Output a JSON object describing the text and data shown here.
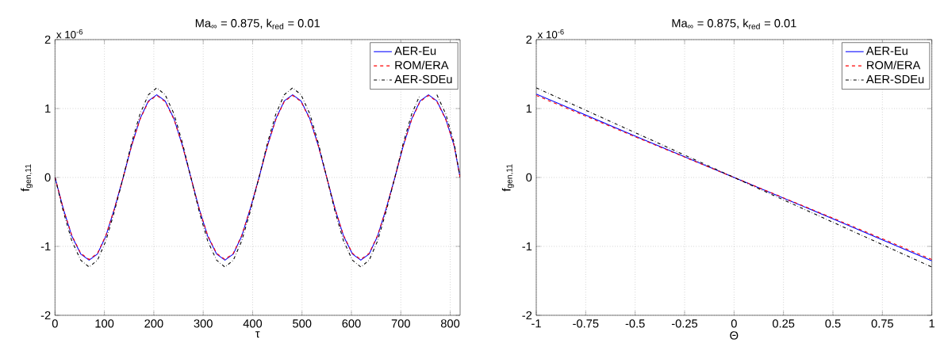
{
  "chart_data": [
    {
      "type": "line",
      "title": "Ma$_{∞}$ = 0.875, k$_{red}$ = 0.01",
      "xlabel": "τ",
      "ylabel": "f$_{gen,11}$",
      "annotations": [
        "x 10$^{-6}$"
      ],
      "x": [
        0,
        17,
        34,
        52,
        69,
        86,
        103,
        120,
        138,
        155,
        172,
        189,
        206,
        223,
        241,
        258,
        275,
        292,
        309,
        327,
        344,
        361,
        378,
        395,
        413,
        430,
        447,
        464,
        481,
        498,
        516,
        533,
        550,
        567,
        584,
        602,
        619,
        636,
        653,
        670,
        688,
        705,
        722,
        739,
        756,
        773,
        791,
        808,
        820
      ],
      "xlim": [
        0,
        820
      ],
      "ylim": [
        -2,
        2
      ],
      "xticks": [
        0,
        100,
        200,
        300,
        400,
        500,
        600,
        700,
        800
      ],
      "yticks": [
        -2,
        -1,
        0,
        1,
        2
      ],
      "grid": true,
      "legend": "top right",
      "series": [
        {
          "name": "AER-Eu",
          "color": "#0000ff",
          "line_style": "solid",
          "values": [
            0,
            -0.46,
            -0.85,
            -1.11,
            -1.2,
            -1.11,
            -0.85,
            -0.46,
            0,
            0.46,
            0.85,
            1.11,
            1.2,
            1.11,
            0.85,
            0.46,
            0,
            -0.46,
            -0.85,
            -1.11,
            -1.2,
            -1.11,
            -0.85,
            -0.46,
            0,
            0.46,
            0.85,
            1.11,
            1.2,
            1.11,
            0.85,
            0.46,
            0,
            -0.46,
            -0.85,
            -1.11,
            -1.2,
            -1.11,
            -0.85,
            -0.46,
            0,
            0.46,
            0.85,
            1.11,
            1.2,
            1.11,
            0.85,
            0.46,
            0
          ]
        },
        {
          "name": "ROM/ERA",
          "color": "#ff0000",
          "line_style": "dashed",
          "values": [
            0,
            -0.46,
            -0.84,
            -1.1,
            -1.19,
            -1.1,
            -0.84,
            -0.46,
            0,
            0.46,
            0.84,
            1.1,
            1.19,
            1.1,
            0.84,
            0.46,
            0,
            -0.46,
            -0.84,
            -1.1,
            -1.19,
            -1.1,
            -0.84,
            -0.46,
            0,
            0.46,
            0.84,
            1.1,
            1.19,
            1.1,
            0.84,
            0.46,
            0,
            -0.46,
            -0.84,
            -1.1,
            -1.19,
            -1.1,
            -0.84,
            -0.46,
            0,
            0.46,
            0.84,
            1.1,
            1.19,
            1.1,
            0.84,
            0.46,
            0
          ]
        },
        {
          "name": "AER-SDEu",
          "color": "#000000",
          "line_style": "dashdot",
          "values": [
            0,
            -0.5,
            -0.92,
            -1.2,
            -1.3,
            -1.2,
            -0.92,
            -0.5,
            0,
            0.5,
            0.92,
            1.2,
            1.3,
            1.2,
            0.92,
            0.5,
            0,
            -0.5,
            -0.92,
            -1.2,
            -1.3,
            -1.2,
            -0.92,
            -0.5,
            0,
            0.5,
            0.92,
            1.2,
            1.3,
            1.2,
            0.92,
            0.5,
            0,
            -0.5,
            -0.92,
            -1.2,
            -1.3,
            -1.2,
            -0.92,
            -0.5,
            0,
            0.5,
            0.92,
            1.2,
            null,
            1.2,
            0.92,
            0.5,
            0
          ]
        }
      ]
    },
    {
      "type": "line",
      "title": "Ma$_{∞}$ = 0.875, k$_{red}$ = 0.01",
      "xlabel": "Θ",
      "ylabel": "f$_{gen,11}$",
      "annotations": [
        "x 10$^{-6}$"
      ],
      "x": [
        -1,
        -0.5,
        0,
        0.5,
        1
      ],
      "xlim": [
        -1,
        1
      ],
      "ylim": [
        -2,
        2
      ],
      "xticks": [
        -1,
        -0.75,
        -0.5,
        -0.25,
        0,
        0.25,
        0.5,
        0.75,
        1
      ],
      "yticks": [
        -2,
        -1,
        0,
        1,
        2
      ],
      "grid": true,
      "legend": "top right",
      "series": [
        {
          "name": "AER-Eu",
          "color": "#0000ff",
          "line_style": "solid",
          "values": [
            1.21,
            0.6,
            0,
            -0.6,
            -1.21
          ]
        },
        {
          "name": "ROM/ERA",
          "color": "#ff0000",
          "line_style": "dashed",
          "values": [
            1.19,
            0.59,
            0,
            -0.59,
            -1.19
          ]
        },
        {
          "name": "AER-SDEu",
          "color": "#000000",
          "line_style": "dashdot",
          "values": [
            1.3,
            0.65,
            0,
            -0.65,
            -1.3
          ]
        }
      ]
    }
  ]
}
